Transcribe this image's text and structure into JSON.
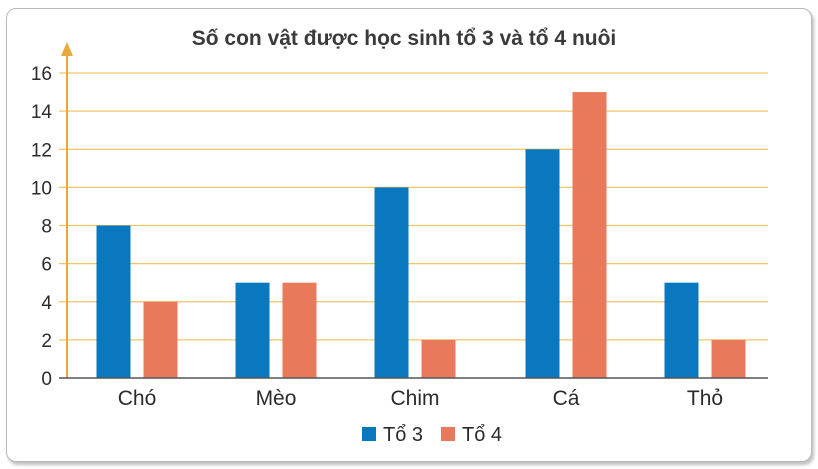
{
  "chart_data": {
    "type": "bar",
    "title": "Số con vật được học sinh tổ 3 và tổ 4 nuôi",
    "xlabel": "",
    "ylabel": "",
    "categories": [
      "Chó",
      "Mèo",
      "Chim",
      "Cá",
      "Thỏ"
    ],
    "series": [
      {
        "name": "Tổ 3",
        "color": "#0a78bf",
        "values": [
          8,
          5,
          10,
          12,
          5
        ]
      },
      {
        "name": "Tổ 4",
        "color": "#e8795a",
        "values": [
          4,
          5,
          2,
          15,
          2
        ]
      }
    ],
    "ylim": [
      0,
      16
    ],
    "yticks": [
      "0",
      "2",
      "4",
      "6",
      "8",
      "10",
      "12",
      "14",
      "16"
    ],
    "grid": true,
    "grid_color": "#f0c56a",
    "axis_color": "#e8a83a",
    "legend_position": "bottom-center"
  }
}
